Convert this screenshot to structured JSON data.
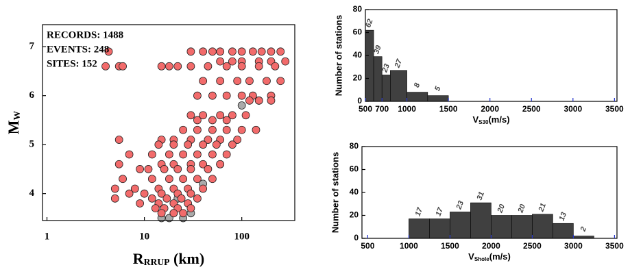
{
  "chart_data": [
    {
      "type": "scatter",
      "log_x": true,
      "xlabel": {
        "main": "R",
        "sub": "RRUP",
        "unit": " (km)"
      },
      "ylabel": {
        "main": "M",
        "sub": "W"
      },
      "annotations": [
        "RECORDS:  1488",
        "EVENTS:  248",
        "SITES:  152"
      ],
      "xlim": [
        0.9,
        350
      ],
      "xticks": [
        1,
        10,
        100
      ],
      "ylim": [
        3.45,
        7.45
      ],
      "yticks": [
        4,
        5,
        6,
        7
      ],
      "series": [
        {
          "name": null,
          "color": "#aaaaaa",
          "x": [
            15,
            18,
            20,
            25,
            30,
            22,
            100,
            150,
            40,
            60
          ],
          "values": [
            3.5,
            3.5,
            3.6,
            3.5,
            3.6,
            3.9,
            5.8,
            5.9,
            4.2,
            4.6
          ]
        },
        {
          "name": null,
          "color": "#f26b6b",
          "x": [
            30,
            40,
            50,
            60,
            80,
            100,
            130,
            160,
            200,
            250,
            4.3,
            60,
            80,
            100,
            150,
            200,
            280,
            15,
            18,
            22,
            30,
            45,
            70,
            100,
            150,
            220,
            4,
            5.5,
            6,
            40,
            60,
            90,
            120,
            180,
            250,
            35,
            50,
            70,
            100,
            130,
            200,
            120,
            150,
            200,
            30,
            40,
            60,
            80,
            110,
            35,
            50,
            70,
            25,
            35,
            50,
            70,
            100,
            140,
            5.5,
            15,
            20,
            30,
            45,
            60,
            90,
            14,
            20,
            28,
            40,
            55,
            80,
            7,
            12,
            18,
            25,
            35,
            50,
            70,
            5.5,
            15,
            20,
            30,
            40,
            60,
            9,
            11,
            16,
            22,
            30,
            45,
            6,
            12,
            18,
            25,
            35,
            50,
            5,
            8,
            14,
            20,
            28,
            40,
            7,
            10,
            15,
            22,
            30,
            5,
            12,
            17,
            24,
            35,
            9,
            14,
            20,
            28,
            13,
            16,
            22,
            30,
            15,
            20,
            25
          ],
          "values": [
            6.9,
            6.9,
            6.9,
            6.9,
            6.9,
            6.9,
            6.9,
            6.9,
            6.9,
            6.9,
            6.9,
            6.7,
            6.7,
            6.7,
            6.7,
            6.7,
            6.7,
            6.6,
            6.6,
            6.6,
            6.6,
            6.6,
            6.6,
            6.6,
            6.6,
            6.6,
            6.6,
            6.6,
            6.6,
            6.3,
            6.3,
            6.3,
            6.3,
            6.3,
            6.3,
            6.0,
            6.0,
            6.0,
            6.0,
            6.0,
            6.0,
            5.9,
            5.9,
            5.9,
            5.6,
            5.6,
            5.6,
            5.6,
            5.6,
            5.5,
            5.5,
            5.5,
            5.3,
            5.3,
            5.3,
            5.3,
            5.3,
            5.3,
            5.1,
            5.1,
            5.1,
            5.1,
            5.1,
            5.1,
            5.1,
            5.0,
            5.0,
            5.0,
            5.0,
            5.0,
            5.0,
            4.8,
            4.8,
            4.8,
            4.8,
            4.8,
            4.8,
            4.8,
            4.6,
            4.6,
            4.6,
            4.6,
            4.6,
            4.6,
            4.5,
            4.5,
            4.5,
            4.5,
            4.5,
            4.5,
            4.3,
            4.3,
            4.3,
            4.3,
            4.3,
            4.3,
            4.1,
            4.1,
            4.1,
            4.1,
            4.1,
            4.1,
            4.0,
            4.0,
            4.0,
            4.0,
            4.0,
            3.9,
            3.9,
            3.9,
            3.9,
            3.9,
            3.8,
            3.8,
            3.8,
            3.8,
            3.7,
            3.7,
            3.7,
            3.7,
            3.6,
            3.6,
            3.6
          ]
        }
      ]
    },
    {
      "type": "histogram",
      "color": "#404040",
      "ylabel": "Number of stations",
      "xlabel": {
        "main": "V",
        "sub": "S30",
        "unit": "(m/s)"
      },
      "bins": [
        500,
        600,
        700,
        800,
        1000,
        1250,
        1500
      ],
      "values": [
        62,
        39,
        23,
        27,
        8,
        5
      ],
      "xlim": [
        500,
        3530
      ],
      "xticks": [
        500,
        700,
        1000,
        1500,
        2000,
        2500,
        3000,
        3500
      ],
      "ylim": [
        0,
        80
      ],
      "yticks": [
        0,
        20,
        40,
        60,
        80
      ]
    },
    {
      "type": "histogram",
      "color": "#404040",
      "ylabel": "Number of stations",
      "xlabel": {
        "main": "V",
        "sub": "Shole",
        "unit": "(m/s)"
      },
      "bins": [
        1000,
        1250,
        1500,
        1750,
        2000,
        2250,
        2500,
        2750,
        3000,
        3250
      ],
      "values": [
        17,
        17,
        23,
        31,
        20,
        20,
        21,
        13,
        2
      ],
      "xlim": [
        430,
        3530
      ],
      "xticks": [
        500,
        1000,
        1500,
        2000,
        2500,
        3000,
        3500
      ],
      "ylim": [
        0,
        80
      ],
      "yticks": [
        0,
        20,
        40,
        60,
        80
      ]
    }
  ]
}
